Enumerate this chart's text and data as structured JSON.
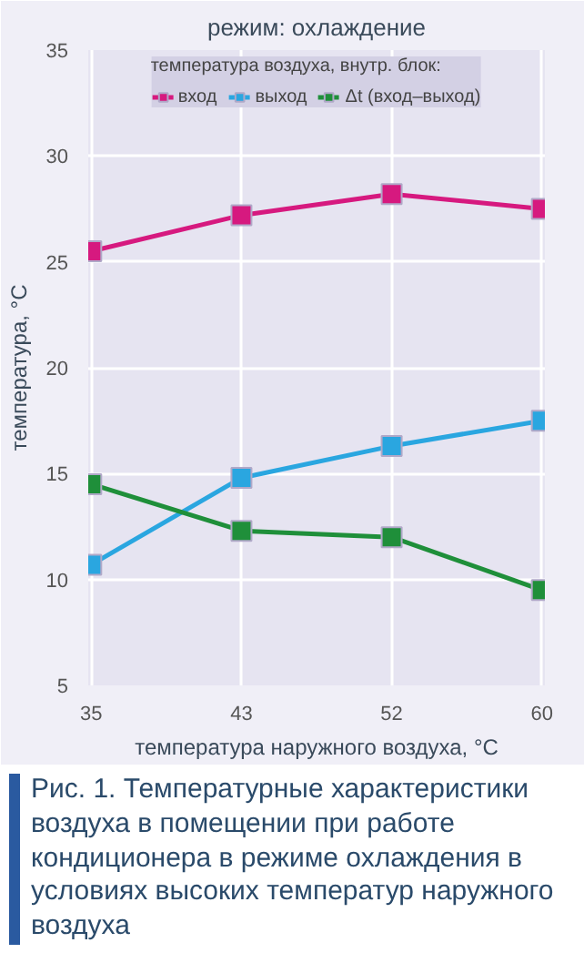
{
  "chart_data": {
    "type": "line",
    "title": "режим: охлаждение",
    "xlabel": "температура наружного воздуха, °C",
    "ylabel": "температура, °C",
    "legend_title": "температура воздуха, внутр. блок:",
    "categories": [
      "35",
      "43",
      "52",
      "60"
    ],
    "series": [
      {
        "name": "вход",
        "color": "#d6197f",
        "values": [
          25.5,
          27.2,
          28.2,
          27.5
        ]
      },
      {
        "name": "выход",
        "color": "#2aa6e0",
        "values": [
          10.7,
          14.8,
          16.3,
          17.5
        ]
      },
      {
        "name": "Δt (вход–выход)",
        "color": "#1f8f3a",
        "values": [
          14.5,
          12.3,
          12.0,
          9.5
        ]
      }
    ],
    "ylim": [
      5,
      35
    ],
    "yticks": [
      5,
      10,
      15,
      20,
      25,
      30,
      35
    ],
    "grid": true,
    "legend": "top",
    "marker": "square",
    "line_style": "solid",
    "annotations": [
      "Рис. 1. Температурные характеристики воздуха в помещении при работе кондиционера в режиме охлаждения в условиях высоких температур наружного воздуха"
    ]
  }
}
